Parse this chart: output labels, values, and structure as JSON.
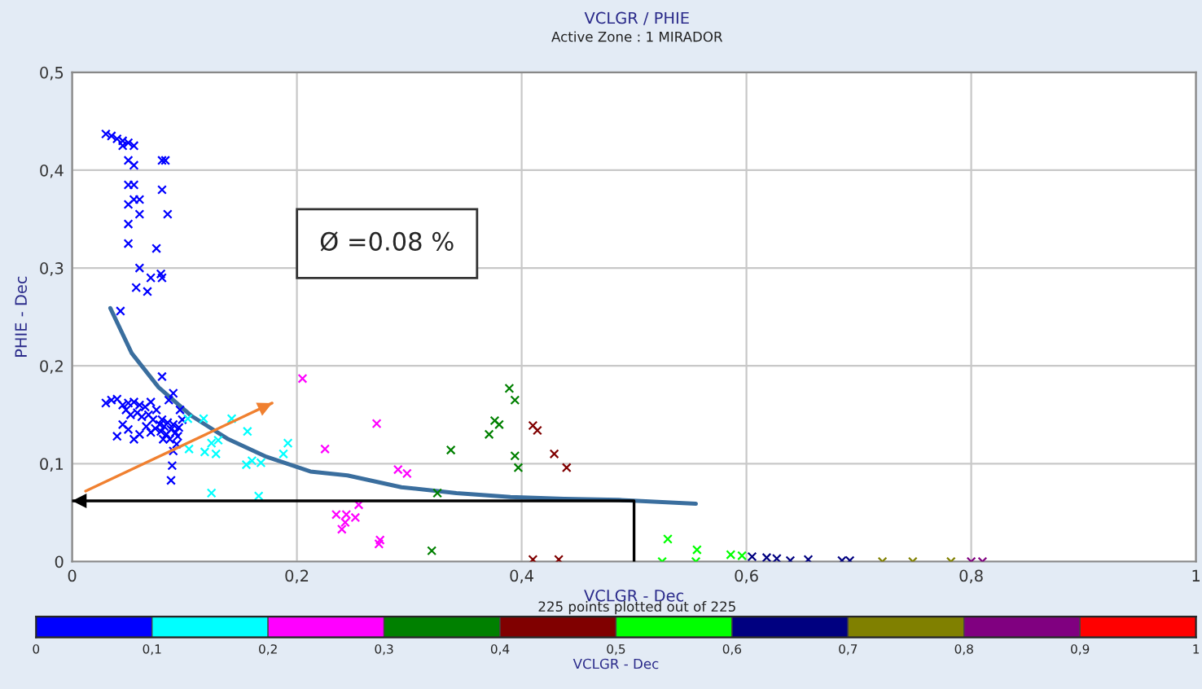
{
  "chart_data": {
    "type": "scatter",
    "title": "VCLGR / PHIE",
    "subtitle": "Active Zone : 1 MIRADOR",
    "xlabel": "VCLGR - Dec",
    "ylabel": "PHIE - Dec",
    "clabel": "VCLGR - Dec",
    "annotations": [
      "225 points plotted out of 225",
      "Ø =0.08 %"
    ],
    "xlim": [
      0,
      1
    ],
    "ylim": [
      0,
      0.5
    ],
    "xticks": [
      0,
      {
        "value": 0.2,
        "label": "0,2"
      },
      {
        "value": 0.4,
        "label": "0,4"
      },
      {
        "value": 0.6,
        "label": "0,6"
      },
      {
        "value": 0.8,
        "label": "0,8"
      },
      1
    ],
    "yticks": [
      0,
      {
        "value": 0.1,
        "label": "0,1"
      },
      {
        "value": 0.2,
        "label": "0,2"
      },
      {
        "value": 0.3,
        "label": "0,3"
      },
      {
        "value": 0.4,
        "label": "0,4"
      },
      {
        "value": 0.5,
        "label": "0,5"
      }
    ],
    "clim": [
      0,
      1
    ],
    "cticks": [
      0,
      {
        "value": 0.1,
        "label": "0,1"
      },
      {
        "value": 0.2,
        "label": "0,2"
      },
      {
        "value": 0.3,
        "label": "0,3"
      },
      {
        "value": 0.4,
        "label": "0,4"
      },
      {
        "value": 0.5,
        "label": "0,5"
      },
      {
        "value": 0.6,
        "label": "0,6"
      },
      {
        "value": 0.7,
        "label": "0,7"
      },
      {
        "value": 0.8,
        "label": "0,8"
      },
      {
        "value": 0.9,
        "label": "0,9"
      },
      1
    ],
    "colors": [
      "#0000ff",
      "#00ffff",
      "#ff00ff",
      "#008000",
      "#800000",
      "#00ff00",
      "#000080",
      "#808000",
      "#800080",
      "#ff0000"
    ],
    "grid": true,
    "series": [
      {
        "marker": "cross",
        "color": "#0000ff",
        "x": [
          0.03,
          0.035,
          0.04,
          0.045,
          0.05,
          0.045,
          0.055,
          0.05,
          0.055,
          0.08,
          0.083,
          0.05,
          0.055,
          0.08,
          0.055,
          0.06,
          0.05,
          0.06,
          0.085,
          0.05,
          0.05,
          0.075,
          0.08,
          0.07,
          0.06,
          0.079,
          0.057,
          0.067,
          0.043,
          0.08,
          0.035,
          0.04,
          0.03,
          0.045,
          0.05,
          0.055,
          0.06,
          0.065,
          0.07,
          0.048,
          0.052,
          0.058,
          0.062,
          0.068,
          0.072,
          0.075,
          0.078,
          0.08,
          0.082,
          0.085,
          0.088,
          0.09,
          0.092,
          0.095,
          0.084,
          0.079,
          0.074,
          0.07,
          0.066,
          0.06,
          0.055,
          0.05,
          0.045,
          0.04,
          0.087,
          0.093,
          0.098,
          0.086,
          0.09,
          0.096,
          0.094,
          0.081,
          0.089,
          0.088,
          0.09
        ],
        "values": [
          0.437,
          0.435,
          0.432,
          0.43,
          0.428,
          0.425,
          0.425,
          0.41,
          0.405,
          0.41,
          0.41,
          0.385,
          0.385,
          0.38,
          0.37,
          0.37,
          0.365,
          0.355,
          0.355,
          0.345,
          0.325,
          0.32,
          0.29,
          0.29,
          0.3,
          0.294,
          0.28,
          0.276,
          0.256,
          0.189,
          0.165,
          0.166,
          0.162,
          0.16,
          0.162,
          0.163,
          0.16,
          0.158,
          0.163,
          0.155,
          0.15,
          0.152,
          0.148,
          0.15,
          0.145,
          0.155,
          0.14,
          0.145,
          0.138,
          0.142,
          0.135,
          0.14,
          0.132,
          0.137,
          0.13,
          0.133,
          0.136,
          0.132,
          0.138,
          0.13,
          0.125,
          0.135,
          0.14,
          0.128,
          0.125,
          0.12,
          0.145,
          0.165,
          0.172,
          0.155,
          0.128,
          0.125,
          0.098,
          0.083,
          0.113
        ]
      },
      {
        "marker": "cross",
        "color": "#00ffff",
        "x": [
          0.103,
          0.117,
          0.142,
          0.124,
          0.13,
          0.156,
          0.192,
          0.104,
          0.118,
          0.128,
          0.155,
          0.16,
          0.168,
          0.188,
          0.124,
          0.166
        ],
        "values": [
          0.146,
          0.146,
          0.146,
          0.121,
          0.124,
          0.133,
          0.121,
          0.115,
          0.112,
          0.11,
          0.099,
          0.103,
          0.101,
          0.11,
          0.07,
          0.067
        ]
      },
      {
        "marker": "cross",
        "color": "#ff00ff",
        "x": [
          0.205,
          0.225,
          0.271,
          0.29,
          0.298,
          0.255,
          0.235,
          0.243,
          0.24,
          0.274,
          0.273,
          0.244,
          0.252
        ],
        "values": [
          0.187,
          0.115,
          0.141,
          0.094,
          0.09,
          0.058,
          0.048,
          0.04,
          0.033,
          0.022,
          0.018,
          0.048,
          0.045
        ]
      },
      {
        "marker": "cross",
        "color": "#008000",
        "x": [
          0.389,
          0.394,
          0.38,
          0.376,
          0.371,
          0.337,
          0.394,
          0.397,
          0.325,
          0.32
        ],
        "values": [
          0.177,
          0.165,
          0.14,
          0.144,
          0.13,
          0.114,
          0.108,
          0.096,
          0.07,
          0.011
        ]
      },
      {
        "marker": "cross",
        "color": "#800000",
        "x": [
          0.41,
          0.414,
          0.429,
          0.44,
          0.41,
          0.433
        ],
        "values": [
          0.139,
          0.134,
          0.11,
          0.096,
          0.002,
          0.002
        ]
      },
      {
        "marker": "cross",
        "color": "#00ff00",
        "x": [
          0.53,
          0.556,
          0.586,
          0.596,
          0.525,
          0.555
        ],
        "values": [
          0.023,
          0.012,
          0.007,
          0.006,
          0.0,
          0.0
        ]
      },
      {
        "marker": "cross",
        "color": "#000080",
        "x": [
          0.605,
          0.618,
          0.627,
          0.639,
          0.655,
          0.685,
          0.692
        ],
        "values": [
          0.005,
          0.004,
          0.003,
          0.001,
          0.002,
          0.001,
          0.001
        ]
      },
      {
        "marker": "cross",
        "color": "#808000",
        "x": [
          0.721,
          0.748,
          0.782
        ],
        "values": [
          0.0,
          0.0,
          0.0
        ]
      },
      {
        "marker": "cross",
        "color": "#800080",
        "x": [
          0.8,
          0.81
        ],
        "values": [
          0.0,
          0.0
        ]
      },
      {
        "type": "line",
        "color": "#3a6e9e",
        "x": [
          0.034,
          0.053,
          0.077,
          0.106,
          0.139,
          0.173,
          0.212,
          0.245,
          0.293,
          0.342,
          0.39,
          0.438,
          0.486,
          0.555
        ],
        "values": [
          0.259,
          0.213,
          0.178,
          0.149,
          0.125,
          0.107,
          0.092,
          0.088,
          0.076,
          0.07,
          0.066,
          0.064,
          0.063,
          0.059
        ]
      },
      {
        "type": "line",
        "color": "#000000",
        "x": [
          0.5,
          0.5,
          0.0
        ],
        "values": [
          0.0,
          0.062,
          0.062
        ]
      },
      {
        "type": "line",
        "color": "#f08030",
        "x": [
          0.012,
          0.178
        ],
        "values": [
          0.072,
          0.162
        ]
      }
    ]
  }
}
